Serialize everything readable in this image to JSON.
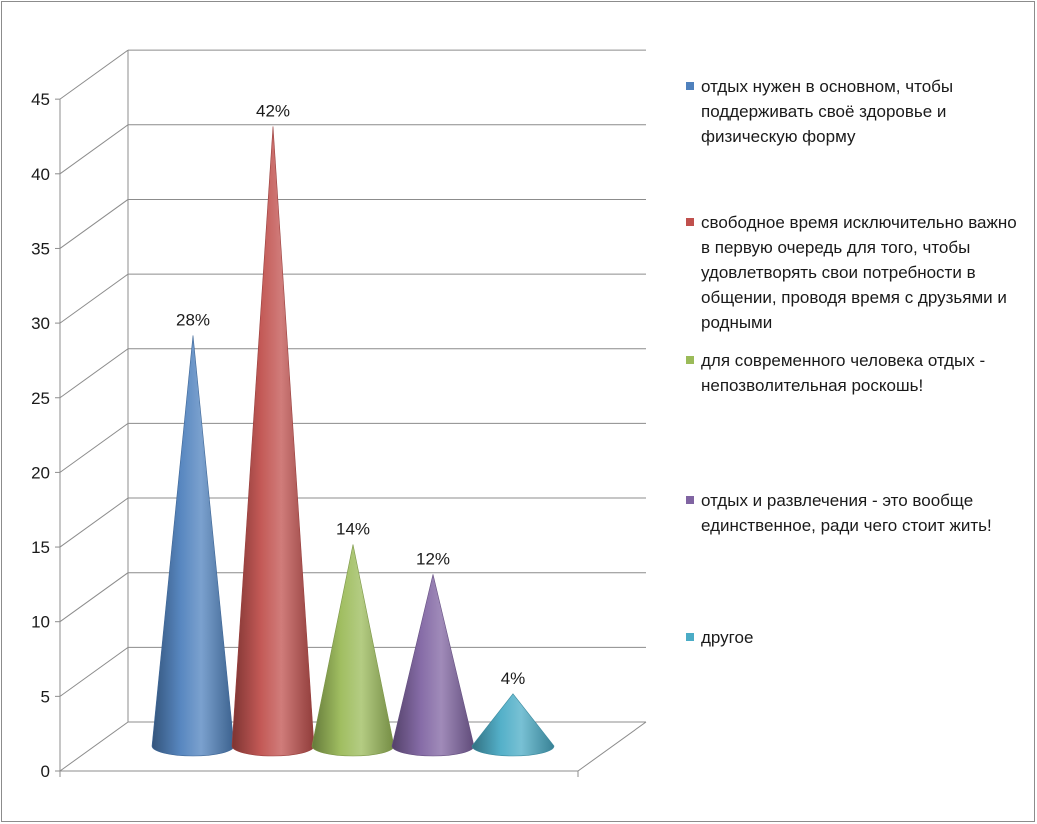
{
  "chart_data": {
    "type": "bar",
    "shape": "cone-3d",
    "categories": [
      "отдых нужен в основном, чтобы поддерживать своё здоровье и физическую форму",
      "свободное время исключительно важно в первую очередь для того, чтобы удовлетворять свои потребности в общении, проводя время с друзьями и родными",
      "для современного человека отдых - непозволительная роскошь!",
      "отдых и развлечения - это вообще единственное, ради чего стоит жить!",
      "другое"
    ],
    "values": [
      28,
      42,
      14,
      12,
      4
    ],
    "data_labels": [
      "28%",
      "42%",
      "14%",
      "12%",
      "4%"
    ],
    "colors": [
      "#4f81bd",
      "#c0504d",
      "#9bbb59",
      "#8064a2",
      "#4bacc6"
    ],
    "y_ticks": [
      "0",
      "5",
      "10",
      "15",
      "20",
      "25",
      "30",
      "35",
      "40",
      "45"
    ],
    "ylim": [
      0,
      45
    ],
    "grid": true,
    "legend_position": "right",
    "legend": [
      {
        "label": "отдых нужен в основном, чтобы поддерживать своё здоровье и физическую форму",
        "color": "#4f81bd"
      },
      {
        "label": "свободное время исключительно важно в первую очередь для того, чтобы удовлетворять свои потребности в общении, проводя время с друзьями и родными",
        "color": "#c0504d"
      },
      {
        "label": "для современного человека отдых - непозволительная роскошь!",
        "color": "#9bbb59"
      },
      {
        "label": "отдых и развлечения - это вообще единственное, ради чего стоит жить!",
        "color": "#8064a2"
      },
      {
        "label": "другое",
        "color": "#4bacc6"
      }
    ]
  }
}
